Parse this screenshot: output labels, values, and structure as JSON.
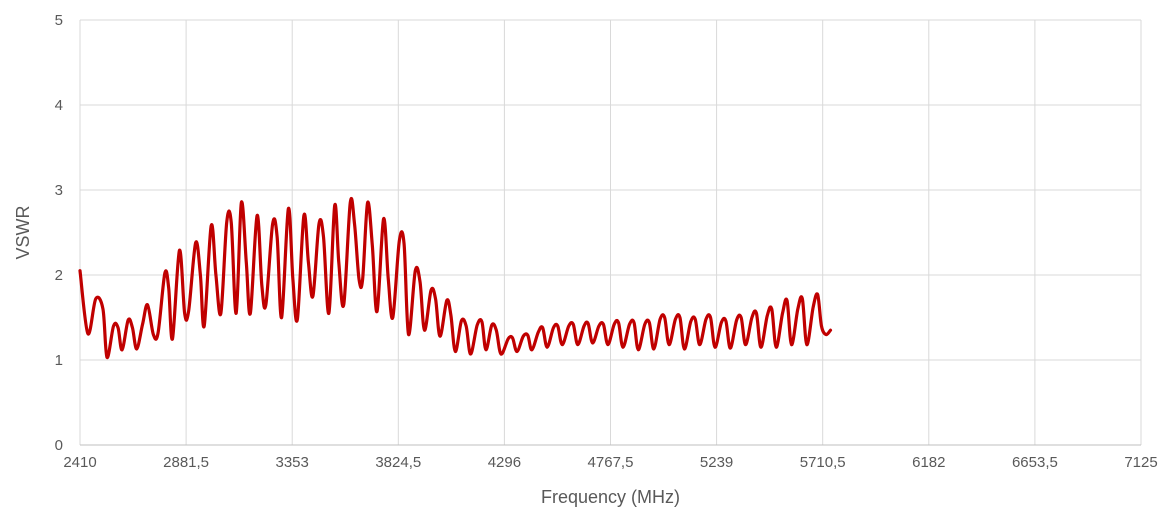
{
  "chart_data": {
    "type": "line",
    "title": "",
    "xlabel": "Frequency (MHz)",
    "ylabel": "VSWR",
    "xlim": [
      2410,
      7125
    ],
    "ylim": [
      0,
      5
    ],
    "yticks": [
      "0",
      "1",
      "2",
      "3",
      "4",
      "5"
    ],
    "xticks": [
      {
        "value": 2410,
        "label": "2410"
      },
      {
        "value": 2881.5,
        "label": "2881,5"
      },
      {
        "value": 3353,
        "label": "3353"
      },
      {
        "value": 3824.5,
        "label": "3824,5"
      },
      {
        "value": 4296,
        "label": "4296"
      },
      {
        "value": 4767.5,
        "label": "4767,5"
      },
      {
        "value": 5239,
        "label": "5239"
      },
      {
        "value": 5710.5,
        "label": "5710,5"
      },
      {
        "value": 6182,
        "label": "6182"
      },
      {
        "value": 6653.5,
        "label": "6653,5"
      },
      {
        "value": 7125,
        "label": "7125"
      }
    ],
    "grid": true,
    "legend": "none",
    "series": [
      {
        "color": "#C00000",
        "points": [
          [
            2410,
            2.05
          ],
          [
            2445,
            1.31
          ],
          [
            2480,
            1.72
          ],
          [
            2512,
            1.6
          ],
          [
            2530,
            1.03
          ],
          [
            2559,
            1.4
          ],
          [
            2579,
            1.38
          ],
          [
            2597,
            1.12
          ],
          [
            2624,
            1.47
          ],
          [
            2643,
            1.38
          ],
          [
            2662,
            1.13
          ],
          [
            2688,
            1.42
          ],
          [
            2710,
            1.65
          ],
          [
            2736,
            1.3
          ],
          [
            2757,
            1.32
          ],
          [
            2787,
            2.02
          ],
          [
            2804,
            1.85
          ],
          [
            2821,
            1.25
          ],
          [
            2852,
            2.29
          ],
          [
            2875,
            1.55
          ],
          [
            2893,
            1.58
          ],
          [
            2924,
            2.38
          ],
          [
            2945,
            2.0
          ],
          [
            2962,
            1.4
          ],
          [
            2993,
            2.58
          ],
          [
            3014,
            2.0
          ],
          [
            3036,
            1.55
          ],
          [
            3062,
            2.62
          ],
          [
            3082,
            2.62
          ],
          [
            3104,
            1.55
          ],
          [
            3127,
            2.85
          ],
          [
            3149,
            2.15
          ],
          [
            3167,
            1.55
          ],
          [
            3197,
            2.7
          ],
          [
            3218,
            1.88
          ],
          [
            3236,
            1.65
          ],
          [
            3266,
            2.6
          ],
          [
            3286,
            2.45
          ],
          [
            3306,
            1.5
          ],
          [
            3336,
            2.78
          ],
          [
            3356,
            1.95
          ],
          [
            3376,
            1.48
          ],
          [
            3405,
            2.7
          ],
          [
            3425,
            2.15
          ],
          [
            3445,
            1.75
          ],
          [
            3472,
            2.6
          ],
          [
            3492,
            2.45
          ],
          [
            3516,
            1.55
          ],
          [
            3542,
            2.82
          ],
          [
            3560,
            2.15
          ],
          [
            3582,
            1.65
          ],
          [
            3611,
            2.85
          ],
          [
            3630,
            2.6
          ],
          [
            3650,
            1.95
          ],
          [
            3666,
            1.95
          ],
          [
            3688,
            2.85
          ],
          [
            3709,
            2.35
          ],
          [
            3730,
            1.57
          ],
          [
            3759,
            2.66
          ],
          [
            3780,
            1.95
          ],
          [
            3800,
            1.5
          ],
          [
            3829,
            2.4
          ],
          [
            3850,
            2.37
          ],
          [
            3870,
            1.3
          ],
          [
            3900,
            2.05
          ],
          [
            3921,
            1.92
          ],
          [
            3941,
            1.35
          ],
          [
            3970,
            1.82
          ],
          [
            3990,
            1.72
          ],
          [
            4010,
            1.28
          ],
          [
            4040,
            1.7
          ],
          [
            4058,
            1.53
          ],
          [
            4078,
            1.1
          ],
          [
            4105,
            1.46
          ],
          [
            4126,
            1.4
          ],
          [
            4146,
            1.07
          ],
          [
            4175,
            1.41
          ],
          [
            4196,
            1.45
          ],
          [
            4214,
            1.12
          ],
          [
            4240,
            1.41
          ],
          [
            4260,
            1.35
          ],
          [
            4281,
            1.07
          ],
          [
            4313,
            1.25
          ],
          [
            4332,
            1.26
          ],
          [
            4352,
            1.1
          ],
          [
            4380,
            1.28
          ],
          [
            4400,
            1.29
          ],
          [
            4418,
            1.12
          ],
          [
            4447,
            1.33
          ],
          [
            4466,
            1.38
          ],
          [
            4486,
            1.15
          ],
          [
            4514,
            1.38
          ],
          [
            4533,
            1.4
          ],
          [
            4553,
            1.18
          ],
          [
            4582,
            1.4
          ],
          [
            4602,
            1.42
          ],
          [
            4622,
            1.18
          ],
          [
            4650,
            1.4
          ],
          [
            4668,
            1.43
          ],
          [
            4688,
            1.2
          ],
          [
            4716,
            1.4
          ],
          [
            4736,
            1.42
          ],
          [
            4756,
            1.18
          ],
          [
            4784,
            1.42
          ],
          [
            4803,
            1.44
          ],
          [
            4823,
            1.15
          ],
          [
            4852,
            1.42
          ],
          [
            4872,
            1.44
          ],
          [
            4891,
            1.12
          ],
          [
            4920,
            1.42
          ],
          [
            4940,
            1.44
          ],
          [
            4960,
            1.13
          ],
          [
            4988,
            1.48
          ],
          [
            5008,
            1.5
          ],
          [
            5028,
            1.18
          ],
          [
            5056,
            1.48
          ],
          [
            5076,
            1.5
          ],
          [
            5096,
            1.13
          ],
          [
            5124,
            1.45
          ],
          [
            5144,
            1.48
          ],
          [
            5164,
            1.18
          ],
          [
            5192,
            1.48
          ],
          [
            5212,
            1.5
          ],
          [
            5232,
            1.15
          ],
          [
            5260,
            1.44
          ],
          [
            5280,
            1.46
          ],
          [
            5300,
            1.14
          ],
          [
            5328,
            1.47
          ],
          [
            5348,
            1.5
          ],
          [
            5368,
            1.18
          ],
          [
            5396,
            1.5
          ],
          [
            5416,
            1.55
          ],
          [
            5436,
            1.15
          ],
          [
            5464,
            1.52
          ],
          [
            5484,
            1.6
          ],
          [
            5504,
            1.15
          ],
          [
            5532,
            1.55
          ],
          [
            5552,
            1.7
          ],
          [
            5572,
            1.18
          ],
          [
            5600,
            1.6
          ],
          [
            5620,
            1.72
          ],
          [
            5640,
            1.18
          ],
          [
            5668,
            1.62
          ],
          [
            5688,
            1.77
          ],
          [
            5705,
            1.4
          ],
          [
            5725,
            1.3
          ],
          [
            5745,
            1.35
          ]
        ]
      }
    ]
  }
}
